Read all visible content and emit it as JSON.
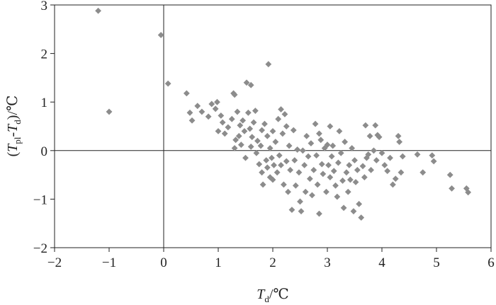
{
  "chart_data": {
    "type": "scatter",
    "xlim": [
      -2,
      6
    ],
    "ylim": [
      -2,
      3
    ],
    "x_ticks": [
      "−2",
      "−1",
      "0",
      "1",
      "2",
      "3",
      "4",
      "5",
      "6"
    ],
    "y_ticks": [
      "−2",
      "−1",
      "0",
      "1",
      "2",
      "3"
    ],
    "xlabel": {
      "var": "T",
      "sub": "d",
      "unit": "/℃"
    },
    "ylabel": {
      "open": "(",
      "var1": "T",
      "sub1": "pl",
      "dash": "-",
      "var2": "T",
      "sub2": "d",
      "close": ")",
      "unit": "/℃"
    },
    "reference_lines": [
      "x=0",
      "y=0"
    ],
    "grid": false,
    "marker": "diamond",
    "marker_color": "#8c8c8c",
    "points": [
      [
        -1.2,
        2.88
      ],
      [
        -1.0,
        0.8
      ],
      [
        -0.05,
        2.38
      ],
      [
        0.08,
        1.38
      ],
      [
        0.42,
        1.18
      ],
      [
        0.48,
        0.78
      ],
      [
        0.52,
        0.62
      ],
      [
        0.62,
        0.92
      ],
      [
        0.7,
        0.8
      ],
      [
        0.82,
        0.7
      ],
      [
        0.88,
        0.96
      ],
      [
        0.95,
        0.86
      ],
      [
        0.98,
        1.0
      ],
      [
        1.0,
        0.4
      ],
      [
        1.05,
        0.72
      ],
      [
        1.08,
        0.58
      ],
      [
        1.12,
        0.35
      ],
      [
        1.18,
        0.48
      ],
      [
        1.25,
        0.65
      ],
      [
        1.28,
        1.18
      ],
      [
        1.3,
        1.15
      ],
      [
        1.3,
        0.05
      ],
      [
        1.32,
        0.22
      ],
      [
        1.35,
        0.8
      ],
      [
        1.38,
        0.3
      ],
      [
        1.4,
        0.52
      ],
      [
        1.42,
        0.12
      ],
      [
        1.45,
        0.62
      ],
      [
        1.48,
        0.4
      ],
      [
        1.5,
        -0.15
      ],
      [
        1.52,
        1.4
      ],
      [
        1.55,
        0.78
      ],
      [
        1.58,
        0.45
      ],
      [
        1.6,
        1.35
      ],
      [
        1.6,
        0.08
      ],
      [
        1.62,
        0.28
      ],
      [
        1.65,
        0.58
      ],
      [
        1.68,
        0.82
      ],
      [
        1.7,
        -0.05
      ],
      [
        1.72,
        0.2
      ],
      [
        1.75,
        -0.28
      ],
      [
        1.78,
        0.1
      ],
      [
        1.8,
        -0.45
      ],
      [
        1.8,
        0.42
      ],
      [
        1.82,
        -0.7
      ],
      [
        1.85,
        0.55
      ],
      [
        1.88,
        -0.2
      ],
      [
        1.9,
        -0.35
      ],
      [
        1.9,
        0.3
      ],
      [
        1.92,
        1.78
      ],
      [
        1.95,
        -0.55
      ],
      [
        1.95,
        0.05
      ],
      [
        1.98,
        -0.15
      ],
      [
        2.0,
        -0.6
      ],
      [
        2.0,
        0.4
      ],
      [
        2.02,
        -0.3
      ],
      [
        2.05,
        0.18
      ],
      [
        2.08,
        -0.45
      ],
      [
        2.1,
        0.65
      ],
      [
        2.12,
        -0.1
      ],
      [
        2.15,
        0.85
      ],
      [
        2.15,
        -0.3
      ],
      [
        2.18,
        0.35
      ],
      [
        2.2,
        -0.7
      ],
      [
        2.22,
        0.75
      ],
      [
        2.25,
        -0.22
      ],
      [
        2.25,
        0.5
      ],
      [
        2.28,
        -0.85
      ],
      [
        2.3,
        0.1
      ],
      [
        2.32,
        -0.4
      ],
      [
        2.35,
        -1.22
      ],
      [
        2.38,
        0.42
      ],
      [
        2.4,
        -0.2
      ],
      [
        2.42,
        -0.72
      ],
      [
        2.45,
        0.02
      ],
      [
        2.48,
        -0.45
      ],
      [
        2.5,
        -1.05
      ],
      [
        2.52,
        -1.25
      ],
      [
        2.55,
        0.0
      ],
      [
        2.58,
        -0.3
      ],
      [
        2.6,
        -0.85
      ],
      [
        2.62,
        0.3
      ],
      [
        2.65,
        -0.12
      ],
      [
        2.68,
        -0.58
      ],
      [
        2.7,
        0.15
      ],
      [
        2.72,
        -0.92
      ],
      [
        2.75,
        -0.4
      ],
      [
        2.78,
        0.55
      ],
      [
        2.8,
        -0.1
      ],
      [
        2.82,
        -0.7
      ],
      [
        2.85,
        0.35
      ],
      [
        2.85,
        -1.3
      ],
      [
        2.88,
        0.22
      ],
      [
        2.9,
        -0.28
      ],
      [
        2.92,
        -0.48
      ],
      [
        2.95,
        0.05
      ],
      [
        2.98,
        -0.85
      ],
      [
        3.0,
        0.12
      ],
      [
        3.02,
        -0.3
      ],
      [
        3.05,
        0.5
      ],
      [
        3.05,
        -0.55
      ],
      [
        3.08,
        -0.12
      ],
      [
        3.1,
        0.1
      ],
      [
        3.12,
        -0.42
      ],
      [
        3.15,
        -0.72
      ],
      [
        3.18,
        -0.95
      ],
      [
        3.2,
        -0.25
      ],
      [
        3.22,
        0.4
      ],
      [
        3.25,
        -0.05
      ],
      [
        3.28,
        -0.62
      ],
      [
        3.3,
        -1.18
      ],
      [
        3.32,
        0.18
      ],
      [
        3.35,
        -0.45
      ],
      [
        3.38,
        -0.85
      ],
      [
        3.4,
        -0.3
      ],
      [
        3.42,
        -0.6
      ],
      [
        3.45,
        0.05
      ],
      [
        3.48,
        -1.25
      ],
      [
        3.5,
        -0.2
      ],
      [
        3.52,
        -0.65
      ],
      [
        3.55,
        -0.4
      ],
      [
        3.58,
        -1.1
      ],
      [
        3.62,
        -1.38
      ],
      [
        3.65,
        -0.32
      ],
      [
        3.68,
        -0.55
      ],
      [
        3.7,
        0.52
      ],
      [
        3.72,
        -0.15
      ],
      [
        3.75,
        -0.08
      ],
      [
        3.78,
        0.3
      ],
      [
        3.8,
        -0.4
      ],
      [
        3.85,
        0.0
      ],
      [
        3.88,
        0.52
      ],
      [
        3.9,
        -0.2
      ],
      [
        3.92,
        0.32
      ],
      [
        3.95,
        0.28
      ],
      [
        4.0,
        -0.05
      ],
      [
        4.05,
        -0.3
      ],
      [
        4.1,
        -0.42
      ],
      [
        4.15,
        -0.15
      ],
      [
        4.2,
        -0.7
      ],
      [
        4.25,
        -0.58
      ],
      [
        4.3,
        0.3
      ],
      [
        4.32,
        0.18
      ],
      [
        4.35,
        -0.45
      ],
      [
        4.38,
        -0.12
      ],
      [
        4.65,
        -0.08
      ],
      [
        4.75,
        -0.45
      ],
      [
        4.92,
        -0.1
      ],
      [
        4.95,
        -0.22
      ],
      [
        5.25,
        -0.5
      ],
      [
        5.28,
        -0.78
      ],
      [
        5.55,
        -0.78
      ],
      [
        5.58,
        -0.86
      ]
    ]
  }
}
